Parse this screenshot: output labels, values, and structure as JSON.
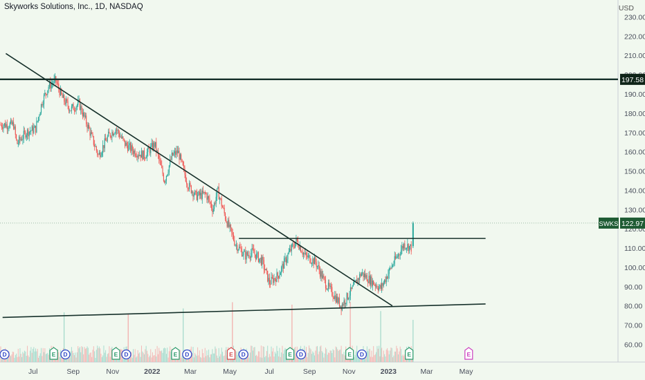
{
  "header": {
    "title": "Skyworks Solutions, Inc., 1D, NASDAQ",
    "currency": "USD"
  },
  "colors": {
    "up": "#26a69a",
    "down": "#ef5350",
    "background": "#f1f8ef",
    "trendline": "#16302a",
    "price_tag": "#1e5b33",
    "dividend": "#3047c7",
    "earnings": "#2a9a6a",
    "earnings_alt": "#d24a4a",
    "earnings_future": "#cc3fbf"
  },
  "chart_data": {
    "type": "candlestick",
    "symbol": "SWKS",
    "y_axis": {
      "ticks": [
        60,
        70,
        80,
        90,
        100,
        110,
        120,
        130,
        140,
        150,
        160,
        170,
        180,
        190,
        200,
        210,
        220,
        230
      ],
      "range": [
        55,
        235
      ]
    },
    "x_axis": {
      "labels": [
        "Jul",
        "Sep",
        "Nov",
        "2022",
        "Mar",
        "May",
        "Jul",
        "Sep",
        "Nov",
        "2023",
        "Mar",
        "May"
      ]
    },
    "price_path": [
      [
        "2021-06-01",
        174
      ],
      [
        "2021-06-06",
        164
      ],
      [
        "2021-06-20",
        170
      ],
      [
        "2021-07-05",
        172
      ],
      [
        "2021-07-15",
        186
      ],
      [
        "2021-07-25",
        194
      ],
      [
        "2021-08-05",
        197
      ],
      [
        "2021-08-15",
        188
      ],
      [
        "2021-08-28",
        182
      ],
      [
        "2021-09-10",
        185
      ],
      [
        "2021-09-25",
        172
      ],
      [
        "2021-10-10",
        158
      ],
      [
        "2021-10-25",
        168
      ],
      [
        "2021-11-06",
        172
      ],
      [
        "2021-11-20",
        164
      ],
      [
        "2021-12-05",
        160
      ],
      [
        "2021-12-20",
        158
      ],
      [
        "2022-01-05",
        164
      ],
      [
        "2022-01-20",
        145
      ],
      [
        "2022-02-01",
        158
      ],
      [
        "2022-02-10",
        160
      ],
      [
        "2022-02-25",
        143
      ],
      [
        "2022-03-10",
        137
      ],
      [
        "2022-03-25",
        138
      ],
      [
        "2022-04-05",
        130
      ],
      [
        "2022-04-12",
        140
      ],
      [
        "2022-04-25",
        125
      ],
      [
        "2022-05-10",
        112
      ],
      [
        "2022-05-25",
        106
      ],
      [
        "2022-06-05",
        108
      ],
      [
        "2022-06-20",
        103
      ],
      [
        "2022-07-01",
        92
      ],
      [
        "2022-07-15",
        96
      ],
      [
        "2022-08-01",
        108
      ],
      [
        "2022-08-12",
        114
      ],
      [
        "2022-08-25",
        106
      ],
      [
        "2022-09-10",
        103
      ],
      [
        "2022-09-25",
        92
      ],
      [
        "2022-10-10",
        85
      ],
      [
        "2022-10-20",
        80
      ],
      [
        "2022-11-05",
        88
      ],
      [
        "2022-11-20",
        97
      ],
      [
        "2022-12-05",
        93
      ],
      [
        "2022-12-20",
        89
      ],
      [
        "2023-01-05",
        100
      ],
      [
        "2023-01-25",
        112
      ],
      [
        "2023-02-06",
        110
      ],
      [
        "2023-02-08",
        122.97
      ]
    ],
    "last_price": 122.97,
    "horizontal_level": 197.58,
    "trendlines": [
      {
        "name": "descending-resistance",
        "from": [
          "2021-05-20",
          211
        ],
        "to": [
          "2023-01-07",
          80
        ]
      },
      {
        "name": "neckline",
        "from": [
          "2022-05-15",
          115
        ],
        "to": [
          "2023-05-31",
          115
        ]
      },
      {
        "name": "ascending-support",
        "from": [
          "2021-05-15",
          74
        ],
        "to": [
          "2023-05-31",
          81
        ]
      }
    ],
    "price_labels": [
      {
        "kind": "level",
        "value": "197.58"
      },
      {
        "kind": "last",
        "symbol": "SWKS",
        "value": "122.97"
      }
    ],
    "volume_spikes": [
      "2021-08-18",
      "2021-11-25",
      "2022-02-18",
      "2022-05-05",
      "2022-08-05",
      "2022-11-03",
      "2022-12-20",
      "2023-02-08"
    ],
    "events": [
      {
        "type": "D",
        "date": "2021-05-18"
      },
      {
        "type": "E",
        "date": "2021-08-02"
      },
      {
        "type": "D",
        "date": "2021-08-20"
      },
      {
        "type": "E",
        "date": "2021-11-06"
      },
      {
        "type": "D",
        "date": "2021-11-22"
      },
      {
        "type": "E",
        "date": "2022-02-06"
      },
      {
        "type": "D",
        "date": "2022-02-24"
      },
      {
        "type": "E",
        "date": "2022-05-03",
        "variant": "alt"
      },
      {
        "type": "D",
        "date": "2022-05-22"
      },
      {
        "type": "E",
        "date": "2022-08-02"
      },
      {
        "type": "D",
        "date": "2022-08-19"
      },
      {
        "type": "E",
        "date": "2022-11-02"
      },
      {
        "type": "D",
        "date": "2022-11-21"
      },
      {
        "type": "E",
        "date": "2023-02-02"
      },
      {
        "type": "E",
        "date": "2023-05-05",
        "variant": "future"
      }
    ]
  }
}
